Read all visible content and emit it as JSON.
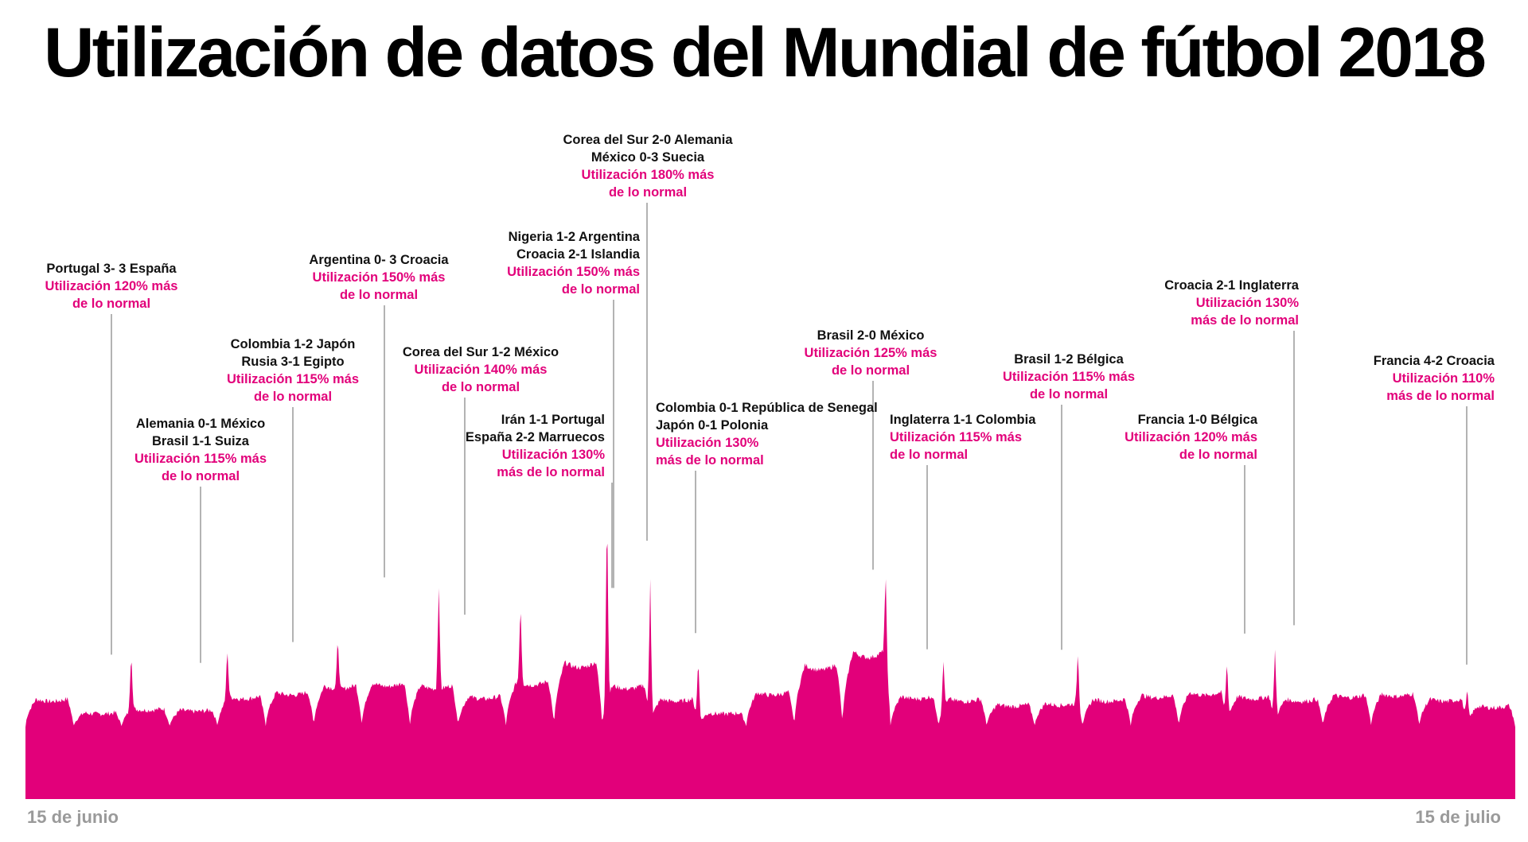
{
  "title": "Utilización de datos del Mundial de fútbol 2018",
  "colors": {
    "area": "#e2007a",
    "match_text": "#111111",
    "util_text": "#e2007a",
    "axis_text": "#9a9a9a",
    "leader": "#9a9a9a"
  },
  "chart_data": {
    "type": "area",
    "x_start_label": "15 de junio",
    "x_end_label": "15 de julio",
    "days": 31,
    "daily_peak_level": [
      1.0,
      0.9,
      0.93,
      0.92,
      1.02,
      1.05,
      1.1,
      1.12,
      1.1,
      1.02,
      1.13,
      1.27,
      1.1,
      1.0,
      0.9,
      1.05,
      1.25,
      1.35,
      1.02,
      1.0,
      0.96,
      0.97,
      1.0,
      1.03,
      1.05,
      1.02,
      1.0,
      1.03,
      1.04,
      1.0,
      0.95
    ],
    "events": [
      {
        "day": 2.2,
        "lines": [
          "Portugal 3- 3 España"
        ],
        "util": [
          "Utilización 120% más",
          "de lo normal"
        ],
        "peak": 1.25,
        "align": "center"
      },
      {
        "day": 4.2,
        "lines": [
          "Alemania 0-1 México",
          "Brasil 1-1 Suiza"
        ],
        "util": [
          "Utilización 115% más",
          "de lo normal"
        ],
        "peak": 1.18,
        "align": "center"
      },
      {
        "day": 6.5,
        "lines": [
          "Colombia 1-2 Japón",
          "Rusia 3-1 Egipto"
        ],
        "util": [
          "Utilización 115% más",
          "de lo normal"
        ],
        "peak": 1.2,
        "align": "center"
      },
      {
        "day": 8.6,
        "lines": [
          "Argentina 0- 3 Croacia"
        ],
        "util": [
          "Utilización 150% más",
          "de lo normal"
        ],
        "peak": 1.55,
        "align": "center"
      },
      {
        "day": 10.3,
        "lines": [
          "Corea del Sur 1-2 México"
        ],
        "util": [
          "Utilización 140% más",
          "de lo normal"
        ],
        "peak": 1.4,
        "align": "center"
      },
      {
        "day": 12.1,
        "lines": [
          "Irán 1-1 Portugal",
          "España 2-2 Marruecos"
        ],
        "util": [
          "Utilización 130%",
          "más de lo normal"
        ],
        "peak": 1.5,
        "align": "right"
      },
      {
        "day": 12.1,
        "lines": [
          "Nigeria 1-2 Argentina",
          "Croacia 2-1 Islandia"
        ],
        "util": [
          "Utilización 150% más",
          "de lo normal"
        ],
        "peak": 1.5,
        "align": "right"
      },
      {
        "day": 13.0,
        "lines": [
          "Corea del Sur 2-0 Alemania",
          "México 0-3 Suecia"
        ],
        "util": [
          "Utilización 180% más",
          "de lo normal"
        ],
        "peak": 1.8,
        "align": "center"
      },
      {
        "day": 14.0,
        "lines": [
          "Colombia 0-1 República de Senegal",
          "Japón 0-1 Polonia"
        ],
        "util": [
          "Utilización 130%",
          "más de lo normal"
        ],
        "peak": 1.3,
        "align": "left"
      },
      {
        "day": 17.9,
        "lines": [
          "Brasil 2-0 México"
        ],
        "util": [
          "Utilización 125% más",
          "de lo normal"
        ],
        "peak": 1.4,
        "align": "center"
      },
      {
        "day": 19.1,
        "lines": [
          "Inglaterra 1-1 Colombia"
        ],
        "util": [
          "Utilización 115% más",
          "de lo normal"
        ],
        "peak": 1.18,
        "align": "left"
      },
      {
        "day": 21.9,
        "lines": [
          "Brasil 1-2 Bélgica"
        ],
        "util": [
          "Utilización 115% más",
          "de lo normal"
        ],
        "peak": 1.22,
        "align": "center"
      },
      {
        "day": 25.0,
        "lines": [
          "Francia 1-0 Bélgica"
        ],
        "util": [
          "Utilización 120% más",
          "de lo normal"
        ],
        "peak": 1.28,
        "align": "right"
      },
      {
        "day": 26.0,
        "lines": [
          "Croacia 2-1 Inglaterra"
        ],
        "util": [
          "Utilización 130%",
          "más de lo normal"
        ],
        "peak": 1.35,
        "align": "right"
      },
      {
        "day": 30.0,
        "lines": [
          "Francia 4-2 Croacia"
        ],
        "util": [
          "Utilización 110%",
          "más de lo normal"
        ],
        "peak": 1.1,
        "align": "right"
      }
    ]
  }
}
